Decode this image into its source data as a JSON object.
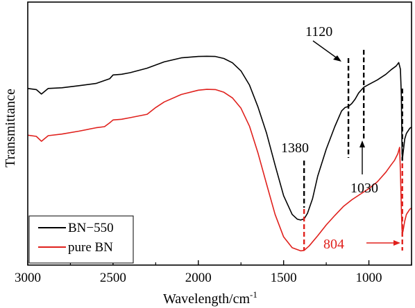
{
  "chart_data": {
    "type": "line",
    "title": "",
    "xlabel": "Wavelength/cm",
    "xlabel_superscript": "-1",
    "ylabel": "Transmittance",
    "xlim": [
      3000,
      750
    ],
    "x_reversed": true,
    "y_ticks_shown": false,
    "grid": false,
    "x_ticks": [
      3000,
      2500,
      2000,
      1500,
      1000
    ],
    "x_tick_labels": [
      "3000",
      "2500",
      "2000",
      "1500",
      "1000"
    ],
    "legend": {
      "position": "bottom-left",
      "entries": [
        "BN−550",
        "pure BN"
      ]
    },
    "series": [
      {
        "name": "BN−550",
        "color": "#000000",
        "points": [
          [
            3000,
            0.73
          ],
          [
            2950,
            0.725
          ],
          [
            2920,
            0.705
          ],
          [
            2880,
            0.73
          ],
          [
            2800,
            0.733
          ],
          [
            2700,
            0.742
          ],
          [
            2600,
            0.752
          ],
          [
            2520,
            0.773
          ],
          [
            2500,
            0.79
          ],
          [
            2450,
            0.793
          ],
          [
            2400,
            0.8
          ],
          [
            2300,
            0.82
          ],
          [
            2200,
            0.848
          ],
          [
            2100,
            0.866
          ],
          [
            2000,
            0.872
          ],
          [
            1950,
            0.873
          ],
          [
            1900,
            0.872
          ],
          [
            1850,
            0.863
          ],
          [
            1800,
            0.844
          ],
          [
            1750,
            0.808
          ],
          [
            1700,
            0.745
          ],
          [
            1650,
            0.647
          ],
          [
            1600,
            0.531
          ],
          [
            1550,
            0.389
          ],
          [
            1500,
            0.253
          ],
          [
            1450,
            0.17
          ],
          [
            1420,
            0.149
          ],
          [
            1400,
            0.145
          ],
          [
            1380,
            0.15
          ],
          [
            1360,
            0.175
          ],
          [
            1330,
            0.24
          ],
          [
            1300,
            0.34
          ],
          [
            1250,
            0.46
          ],
          [
            1200,
            0.56
          ],
          [
            1160,
            0.63
          ],
          [
            1140,
            0.645
          ],
          [
            1120,
            0.65
          ],
          [
            1100,
            0.663
          ],
          [
            1080,
            0.683
          ],
          [
            1060,
            0.71
          ],
          [
            1030,
            0.735
          ],
          [
            1000,
            0.748
          ],
          [
            950,
            0.768
          ],
          [
            900,
            0.793
          ],
          [
            870,
            0.813
          ],
          [
            840,
            0.83
          ],
          [
            825,
            0.845
          ],
          [
            815,
            0.815
          ],
          [
            810,
            0.7
          ],
          [
            806,
            0.48
          ],
          [
            804,
            0.41
          ],
          [
            800,
            0.44
          ],
          [
            790,
            0.505
          ],
          [
            780,
            0.53
          ],
          [
            760,
            0.553
          ],
          [
            750,
            0.558
          ]
        ]
      },
      {
        "name": "pure BN",
        "color": "#e0201c",
        "points": [
          [
            3000,
            0.522
          ],
          [
            2950,
            0.517
          ],
          [
            2920,
            0.495
          ],
          [
            2880,
            0.52
          ],
          [
            2800,
            0.527
          ],
          [
            2700,
            0.54
          ],
          [
            2600,
            0.555
          ],
          [
            2550,
            0.56
          ],
          [
            2520,
            0.577
          ],
          [
            2500,
            0.59
          ],
          [
            2450,
            0.593
          ],
          [
            2400,
            0.6
          ],
          [
            2300,
            0.615
          ],
          [
            2250,
            0.645
          ],
          [
            2200,
            0.67
          ],
          [
            2100,
            0.703
          ],
          [
            2000,
            0.722
          ],
          [
            1950,
            0.726
          ],
          [
            1900,
            0.725
          ],
          [
            1850,
            0.713
          ],
          [
            1800,
            0.688
          ],
          [
            1750,
            0.642
          ],
          [
            1700,
            0.562
          ],
          [
            1650,
            0.442
          ],
          [
            1600,
            0.305
          ],
          [
            1550,
            0.17
          ],
          [
            1500,
            0.07
          ],
          [
            1450,
            0.022
          ],
          [
            1400,
            0.008
          ],
          [
            1380,
            0.01
          ],
          [
            1350,
            0.03
          ],
          [
            1300,
            0.075
          ],
          [
            1250,
            0.123
          ],
          [
            1200,
            0.165
          ],
          [
            1150,
            0.205
          ],
          [
            1100,
            0.235
          ],
          [
            1050,
            0.26
          ],
          [
            1000,
            0.285
          ],
          [
            950,
            0.315
          ],
          [
            900,
            0.358
          ],
          [
            870,
            0.39
          ],
          [
            850,
            0.41
          ],
          [
            830,
            0.44
          ],
          [
            820,
            0.468
          ],
          [
            815,
            0.36
          ],
          [
            810,
            0.2
          ],
          [
            806,
            0.108
          ],
          [
            804,
            0.085
          ],
          [
            800,
            0.095
          ],
          [
            790,
            0.14
          ],
          [
            780,
            0.17
          ],
          [
            760,
            0.193
          ],
          [
            750,
            0.198
          ]
        ]
      }
    ],
    "annotations": [
      {
        "label": "1120",
        "x": 1120,
        "color": "#000000",
        "arrow": "down-right"
      },
      {
        "label": "1030",
        "x": 1030,
        "color": "#000000",
        "arrow": "up"
      },
      {
        "label": "1380",
        "x": 1380,
        "color": "#000000"
      },
      {
        "label": "804",
        "x": 804,
        "color": "#e0201c",
        "arrow": "right"
      }
    ]
  }
}
